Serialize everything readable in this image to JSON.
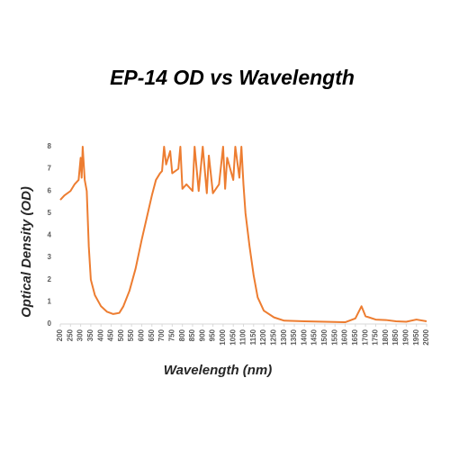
{
  "chart_data": {
    "type": "line",
    "title": "EP-14 OD vs Wavelength",
    "x_label": "Wavelength (nm)",
    "y_label": "Optical Density (OD)",
    "x": [
      200,
      220,
      250,
      270,
      290,
      300,
      305,
      310,
      320,
      330,
      340,
      350,
      370,
      400,
      430,
      460,
      490,
      510,
      540,
      570,
      600,
      630,
      650,
      670,
      690,
      700,
      710,
      720,
      740,
      750,
      780,
      790,
      800,
      820,
      850,
      860,
      880,
      900,
      920,
      930,
      950,
      980,
      1000,
      1010,
      1020,
      1050,
      1060,
      1080,
      1090,
      1100,
      1110,
      1130,
      1150,
      1170,
      1200,
      1250,
      1300,
      1400,
      1500,
      1600,
      1650,
      1680,
      1700,
      1750,
      1800,
      1850,
      1900,
      1950,
      2000
    ],
    "series": [
      {
        "name": "EP-14",
        "color": "#ed7d31",
        "values": [
          5.6,
          5.8,
          6.0,
          6.3,
          6.5,
          7.5,
          6.6,
          8,
          6.5,
          6.0,
          3.5,
          2.0,
          1.3,
          0.8,
          0.55,
          0.45,
          0.5,
          0.8,
          1.5,
          2.5,
          3.8,
          5.0,
          5.8,
          6.5,
          6.8,
          6.9,
          8,
          7.2,
          7.8,
          6.8,
          7.0,
          8,
          6.1,
          6.3,
          6.0,
          8,
          6.0,
          8,
          5.9,
          7.6,
          5.9,
          6.3,
          8,
          6.1,
          7.5,
          6.5,
          8,
          6.6,
          8,
          6.3,
          5.0,
          3.5,
          2.2,
          1.2,
          0.6,
          0.3,
          0.15,
          0.12,
          0.1,
          0.08,
          0.25,
          0.8,
          0.35,
          0.2,
          0.18,
          0.12,
          0.1,
          0.2,
          0.12
        ]
      }
    ],
    "xlim": [
      200,
      2000
    ],
    "xticks": [
      200,
      250,
      300,
      350,
      400,
      450,
      500,
      550,
      600,
      650,
      700,
      750,
      800,
      850,
      900,
      950,
      1000,
      1050,
      1100,
      1150,
      1200,
      1250,
      1300,
      1350,
      1400,
      1450,
      1500,
      1550,
      1600,
      1650,
      1700,
      1750,
      1800,
      1850,
      1900,
      1950,
      2000
    ],
    "ylim": [
      0,
      8
    ],
    "yticks": [
      0,
      1,
      2,
      3,
      4,
      5,
      6,
      7,
      8
    ],
    "grid": false
  }
}
